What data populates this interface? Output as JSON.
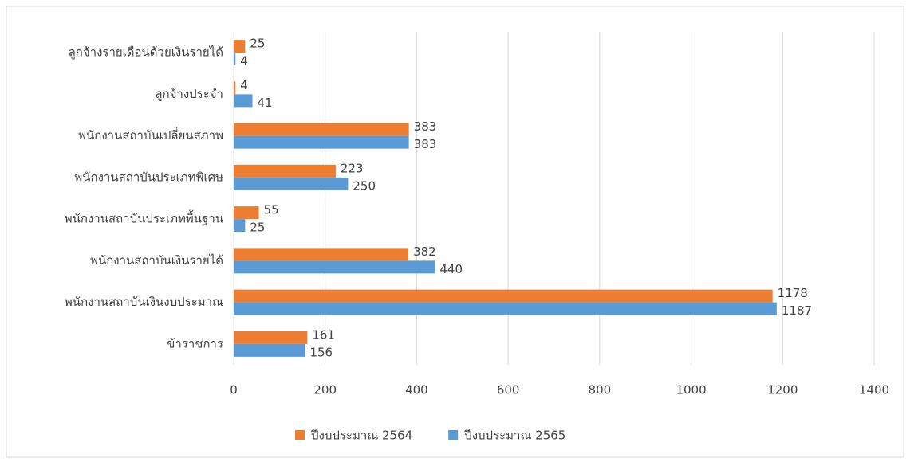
{
  "chart_data": {
    "type": "hbar",
    "categories": [
      "ลูกจ้างรายเดือนด้วยเงินรายได้",
      "ลูกจ้างประจำ",
      "พนักงานสถาบันเปลี่ยนสภาพ",
      "พนักงานสถาบันประเภทพิเศษ",
      "พนักงานสถาบันประเภทพื้นฐาน",
      "พนักงานสถาบันเงินรายได้",
      "พนักงานสถาบันเงินงบประมาณ",
      "ข้าราชการ"
    ],
    "series": [
      {
        "name": "ปีงบประมาณ 2564",
        "color": "#ED7D31",
        "values": [
          25,
          4,
          383,
          223,
          55,
          382,
          1178,
          161
        ]
      },
      {
        "name": "ปีงบประมาณ 2565",
        "color": "#5B9BD5",
        "values": [
          4,
          41,
          383,
          250,
          25,
          440,
          1187,
          156
        ]
      }
    ],
    "xlim": [
      0,
      1400
    ],
    "xticks": [
      0,
      200,
      400,
      600,
      800,
      1000,
      1200,
      1400
    ],
    "grid": true,
    "legend": "bottom"
  }
}
